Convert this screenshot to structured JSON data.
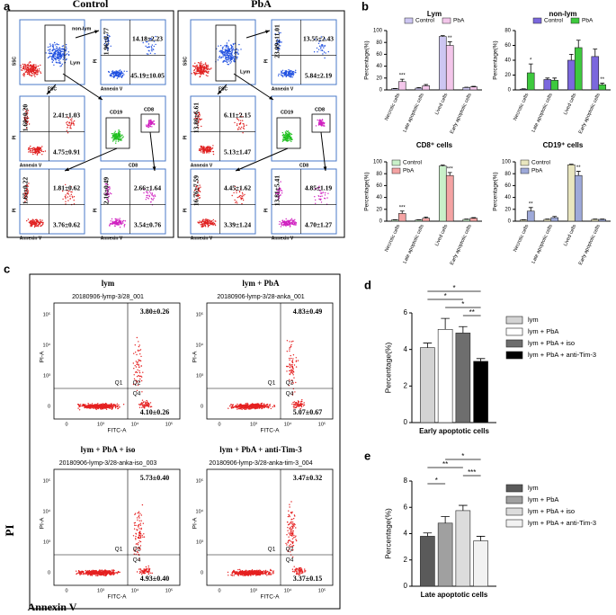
{
  "panel_labels": {
    "a": "a",
    "b": "b",
    "c": "c",
    "d": "d",
    "e": "e"
  },
  "flow_a": {
    "axes": {
      "ssc": "SSC",
      "fsc": "FSC",
      "pi": "PI",
      "annexin": "Annexin V",
      "cd19": "CD19",
      "cd8": "CD8"
    },
    "groups": [
      {
        "title": "Control",
        "gates": [
          "non-lym",
          "Lym"
        ],
        "quadrants": [
          [
            "1.96±0.77",
            "14.18±2.23",
            "45.19±10.05"
          ],
          [
            "1.60±0.20",
            "2.41±1.03",
            "4.75±0.91"
          ],
          [
            "1.65±0.22",
            "1.81±0.62",
            "3.76±0.62"
          ],
          [
            "2.16±0.49",
            "2.66±1.64",
            "3.54±0.76"
          ]
        ]
      },
      {
        "title": "PbA",
        "gates": [
          "Lym"
        ],
        "quadrants": [
          [
            "23.09±11.01",
            "13.55±2.43",
            "5.84±2.19"
          ],
          [
            "13.86±6.61",
            "6.11±2.15",
            "5.13±1.47"
          ],
          [
            "16.76±7.59",
            "4.45±1.62",
            "3.39±1.24"
          ],
          [
            "13.81±5.41",
            "4.85±1.19",
            "4.70±1.27"
          ]
        ]
      }
    ]
  },
  "flow_c": {
    "y_label": "PI",
    "x_label": "Annexin V",
    "plot_y_axis": "PI-A",
    "plot_x_axis": "FITC-A",
    "quadrant_names": [
      "Q1",
      "Q2",
      "Q4"
    ],
    "x_tick_labels": [
      "0",
      "10³",
      "10⁴",
      "10⁵"
    ],
    "y_tick_labels": [
      "0",
      "10³",
      "10⁴",
      "10⁵"
    ],
    "plots": [
      {
        "title": "lym",
        "sample": "20180906-lymp-3/28_001",
        "q2": "3.80±0.26",
        "q4": "4.10±0.26"
      },
      {
        "title": "lym + PbA",
        "sample": "20180906-lymp-3/28-anka_001",
        "q2": "4.83±0.49",
        "q4": "5.07±0.67"
      },
      {
        "title": "lym + PbA + iso",
        "sample": "20180906-lymp-3/28-anka-iso_003",
        "q2": "5.73±0.40",
        "q4": "4.93±0.40"
      },
      {
        "title": "lym + PbA + anti-Tim-3",
        "sample": "20180906-lymp-3/28-anka-tim-3_004",
        "q2": "3.47±0.32",
        "q4": "3.37±0.15"
      }
    ]
  },
  "chart_data": [
    {
      "type": "bar",
      "title": "Lym",
      "y_label": "Percentage(%)",
      "legend": "top",
      "categories": [
        "Necrotic cells",
        "Late apoptotic cells",
        "Lived cells",
        "Early apoptotic cells"
      ],
      "series": [
        {
          "name": "Control",
          "color": "#cdc6f2",
          "values": [
            2,
            3,
            90,
            4
          ],
          "errors": [
            0.5,
            1,
            1.5,
            0.5
          ]
        },
        {
          "name": "PbA",
          "color": "#f3c6ea",
          "values": [
            14,
            7,
            75,
            5
          ],
          "errors": [
            4,
            2,
            6,
            1
          ]
        }
      ],
      "annotations": [
        {
          "text": "***",
          "category": 0,
          "series": 1
        },
        {
          "text": "**",
          "category": 2,
          "series": 1
        }
      ],
      "ylim": [
        0,
        100
      ],
      "yticks": [
        0,
        20,
        40,
        60,
        80,
        100
      ]
    },
    {
      "type": "bar",
      "title": "non-lym",
      "y_label": "Percentage(%)",
      "legend": "top",
      "categories": [
        "Necrotic cells",
        "Late apoptotic cells",
        "Lived cells",
        "Early apoptotic cells"
      ],
      "series": [
        {
          "name": "Control",
          "color": "#7b68dd",
          "values": [
            1,
            14,
            40,
            45
          ],
          "errors": [
            0.5,
            2,
            8,
            10
          ]
        },
        {
          "name": "PbA",
          "color": "#3ec93e",
          "values": [
            23,
            13,
            57,
            7
          ],
          "errors": [
            12,
            3,
            10,
            2
          ]
        }
      ],
      "annotations": [
        {
          "text": "*",
          "category": 0,
          "series": 1
        },
        {
          "text": "**",
          "category": 3,
          "series": 1
        }
      ],
      "ylim": [
        0,
        80
      ],
      "yticks": [
        0,
        20,
        40,
        60,
        80
      ]
    },
    {
      "type": "bar",
      "title": "CD8⁺ cells",
      "y_label": "Percentage(%)",
      "legend": "upper-left",
      "categories": [
        "Necrotic cells",
        "Late apoptotic cells",
        "Lived cells",
        "Early apoptotic cells"
      ],
      "series": [
        {
          "name": "Control",
          "color": "#c9f0c9",
          "values": [
            2,
            2,
            93,
            3
          ],
          "errors": [
            0.5,
            0.5,
            1.5,
            0.5
          ]
        },
        {
          "name": "PbA",
          "color": "#f4a3a3",
          "values": [
            13,
            5,
            77,
            5
          ],
          "errors": [
            4,
            2,
            5,
            1
          ]
        }
      ],
      "annotations": [
        {
          "text": "***",
          "category": 0,
          "series": 1
        },
        {
          "text": "***",
          "category": 2,
          "series": 1
        }
      ],
      "ylim": [
        0,
        100
      ],
      "yticks": [
        0,
        20,
        40,
        60,
        80,
        100
      ]
    },
    {
      "type": "bar",
      "title": "CD19⁺ cells",
      "y_label": "Percentage(%)",
      "legend": "upper-left",
      "categories": [
        "Necrotic cells",
        "Late apoptotic cells",
        "Lived cells",
        "Early apoptotic cells"
      ],
      "series": [
        {
          "name": "Control",
          "color": "#e9e6bf",
          "values": [
            2,
            3,
            95,
            3
          ],
          "errors": [
            0.5,
            0.5,
            1,
            0.5
          ]
        },
        {
          "name": "PbA",
          "color": "#9ea9d9",
          "values": [
            17,
            6,
            77,
            3
          ],
          "errors": [
            6,
            2,
            7,
            0.5
          ]
        }
      ],
      "annotations": [
        {
          "text": "**",
          "category": 0,
          "series": 1
        },
        {
          "text": "**",
          "category": 2,
          "series": 1
        }
      ],
      "ylim": [
        0,
        100
      ],
      "yticks": [
        0,
        20,
        40,
        60,
        80,
        100
      ]
    },
    {
      "type": "bar",
      "y_label": "Percentage(%)",
      "legend": "right",
      "categories": [
        "Early apoptotic cells"
      ],
      "series": [
        {
          "name": "lym",
          "color": "#d3d3d3",
          "values": [
            4.1
          ],
          "errors": [
            0.25
          ]
        },
        {
          "name": "lym + PbA",
          "color": "#ffffff",
          "values": [
            5.1
          ],
          "errors": [
            0.6
          ]
        },
        {
          "name": "lym + PbA + iso",
          "color": "#6e6e6e",
          "values": [
            4.9
          ],
          "errors": [
            0.35
          ]
        },
        {
          "name": "lym + PbA + anti-Tim-3",
          "color": "#000000",
          "values": [
            3.35
          ],
          "errors": [
            0.15
          ]
        }
      ],
      "brackets": [
        {
          "text": "*",
          "from": 0,
          "to": 3
        },
        {
          "text": "*",
          "from": 0,
          "to": 2
        },
        {
          "text": "*",
          "from": 1,
          "to": 3
        },
        {
          "text": "**",
          "from": 2,
          "to": 3
        }
      ],
      "ylim": [
        0,
        6
      ],
      "yticks": [
        0,
        2,
        4,
        6
      ]
    },
    {
      "type": "bar",
      "y_label": "Percentage(%)",
      "legend": "right",
      "categories": [
        "Late apoptotic cells"
      ],
      "series": [
        {
          "name": "lym",
          "color": "#5a5a5a",
          "values": [
            3.8
          ],
          "errors": [
            0.25
          ]
        },
        {
          "name": "lym + PbA",
          "color": "#a0a0a0",
          "values": [
            4.8
          ],
          "errors": [
            0.5
          ]
        },
        {
          "name": "lym + PbA + iso",
          "color": "#dcdcdc",
          "values": [
            5.75
          ],
          "errors": [
            0.4
          ]
        },
        {
          "name": "lym + PbA + anti-Tim-3",
          "color": "#f2f2f2",
          "values": [
            3.45
          ],
          "errors": [
            0.35
          ]
        }
      ],
      "brackets": [
        {
          "text": "*",
          "from": 1,
          "to": 3
        },
        {
          "text": "**",
          "from": 0,
          "to": 2
        },
        {
          "text": "***",
          "from": 2,
          "to": 3
        },
        {
          "text": "*",
          "from": 0,
          "to": 1
        }
      ],
      "ylim": [
        0,
        8
      ],
      "yticks": [
        0,
        2,
        4,
        6,
        8
      ]
    }
  ]
}
